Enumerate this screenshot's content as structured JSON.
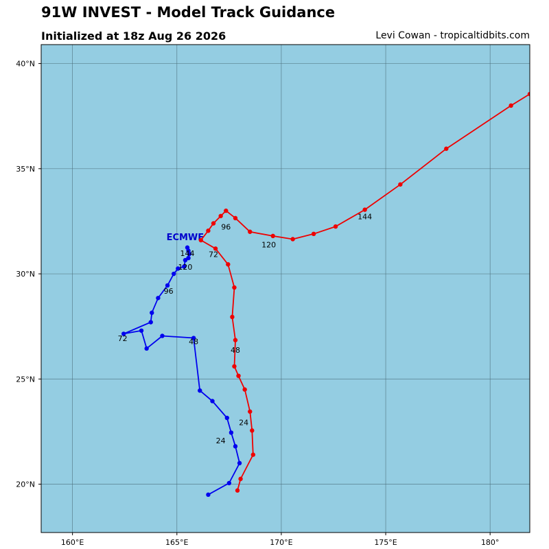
{
  "header": {
    "title": "91W INVEST - Model Track Guidance",
    "subtitle": "Initialized at 18z Aug 26 2026",
    "credit": "Levi Cowan - tropicaltidbits.com"
  },
  "map": {
    "lon_range": [
      158.5,
      181.9
    ],
    "lat_range": [
      17.7,
      40.9
    ],
    "ocean_color": "#94cde2",
    "grid_color": "#4a6b78",
    "frame_color": "#000000",
    "lon_ticks": [
      {
        "value": 160,
        "label": "160°E"
      },
      {
        "value": 165,
        "label": "165°E"
      },
      {
        "value": 170,
        "label": "170°E"
      },
      {
        "value": 175,
        "label": "175°E"
      },
      {
        "value": 180,
        "label": "180°"
      }
    ],
    "lat_ticks": [
      {
        "value": 20,
        "label": "20°N"
      },
      {
        "value": 25,
        "label": "25°N"
      },
      {
        "value": 30,
        "label": "30°N"
      },
      {
        "value": 35,
        "label": "35°N"
      },
      {
        "value": 40,
        "label": "40°N"
      }
    ]
  },
  "chart_data": {
    "type": "scatter",
    "title": "91W INVEST - Model Track Guidance",
    "series": [
      {
        "name": "ECMWF",
        "color": "#0000ee",
        "label_color": "#0000cc",
        "points": [
          [
            166.5,
            19.5
          ],
          [
            167.5,
            20.05
          ],
          [
            168.0,
            21.0
          ],
          [
            167.8,
            21.8
          ],
          [
            167.6,
            22.45
          ],
          [
            167.4,
            23.15
          ],
          [
            166.7,
            23.95
          ],
          [
            166.1,
            24.45
          ],
          [
            165.8,
            26.95
          ],
          [
            164.3,
            27.05
          ],
          [
            163.55,
            26.45
          ],
          [
            163.3,
            27.3
          ],
          [
            162.45,
            27.15
          ],
          [
            163.75,
            27.7
          ],
          [
            163.8,
            28.15
          ],
          [
            164.1,
            28.85
          ],
          [
            164.55,
            29.45
          ],
          [
            164.85,
            30.0
          ],
          [
            165.05,
            30.25
          ],
          [
            165.35,
            30.35
          ],
          [
            165.4,
            30.65
          ],
          [
            165.55,
            30.75
          ],
          [
            165.6,
            30.95
          ],
          [
            165.55,
            31.1
          ],
          [
            165.5,
            31.25
          ]
        ],
        "hour_labels": [
          {
            "text": "24",
            "lon": 167.1,
            "lat": 21.95
          },
          {
            "text": "48",
            "lon": 165.8,
            "lat": 26.65
          },
          {
            "text": "72",
            "lon": 162.4,
            "lat": 26.8
          },
          {
            "text": "96",
            "lon": 164.6,
            "lat": 29.05
          },
          {
            "text": "120",
            "lon": 165.4,
            "lat": 30.2
          },
          {
            "text": "144",
            "lon": 165.5,
            "lat": 30.85
          }
        ],
        "model_label": {
          "text": "ECMWF",
          "lon": 164.5,
          "lat": 31.6
        }
      },
      {
        "name": "",
        "color": "#ee0000",
        "points": [
          [
            167.9,
            19.7
          ],
          [
            168.05,
            20.25
          ],
          [
            168.65,
            21.4
          ],
          [
            168.6,
            22.55
          ],
          [
            168.5,
            23.45
          ],
          [
            168.25,
            24.5
          ],
          [
            167.95,
            25.15
          ],
          [
            167.75,
            25.6
          ],
          [
            167.8,
            26.85
          ],
          [
            167.65,
            27.95
          ],
          [
            167.75,
            29.35
          ],
          [
            167.45,
            30.45
          ],
          [
            166.85,
            31.2
          ],
          [
            166.15,
            31.6
          ],
          [
            166.5,
            32.05
          ],
          [
            166.75,
            32.4
          ],
          [
            167.1,
            32.75
          ],
          [
            167.35,
            33.0
          ],
          [
            167.8,
            32.65
          ],
          [
            168.5,
            32.0
          ],
          [
            169.6,
            31.8
          ],
          [
            170.55,
            31.65
          ],
          [
            171.55,
            31.9
          ],
          [
            172.6,
            32.25
          ],
          [
            174.0,
            33.05
          ],
          [
            175.7,
            34.25
          ],
          [
            177.9,
            35.95
          ],
          [
            181.0,
            38.0
          ],
          [
            181.9,
            38.55
          ]
        ],
        "hour_labels": [
          {
            "text": "24",
            "lon": 168.2,
            "lat": 22.8
          },
          {
            "text": "48",
            "lon": 167.8,
            "lat": 26.25
          },
          {
            "text": "72",
            "lon": 166.75,
            "lat": 30.8
          },
          {
            "text": "96",
            "lon": 167.35,
            "lat": 32.1
          },
          {
            "text": "120",
            "lon": 169.4,
            "lat": 31.25
          },
          {
            "text": "144",
            "lon": 174.0,
            "lat": 32.6
          }
        ]
      }
    ]
  }
}
